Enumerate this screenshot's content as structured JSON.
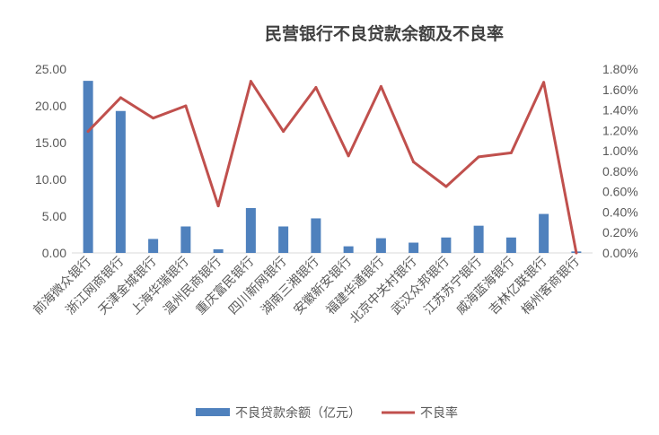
{
  "chart_data": {
    "type": "bar",
    "title": "民营银行不良贷款余额及不良率",
    "categories": [
      "前海微众银行",
      "浙江网商银行",
      "天津金城银行",
      "上海华瑞银行",
      "温州民商银行",
      "重庆富民银行",
      "四川新网银行",
      "湖南三湘银行",
      "安徽新安银行",
      "福建华通银行",
      "北京中关村银行",
      "武汉众邦银行",
      "江苏苏宁银行",
      "威海蓝海银行",
      "吉林亿联银行",
      "梅州客商银行"
    ],
    "series": [
      {
        "name": "不良贷款余额（亿元）",
        "type": "bar",
        "axis": "left",
        "color": "#4F81BD",
        "values": [
          23.4,
          19.3,
          1.9,
          3.6,
          0.5,
          6.1,
          3.6,
          4.7,
          0.9,
          2.0,
          1.4,
          2.1,
          3.7,
          2.1,
          5.3,
          0.2
        ]
      },
      {
        "name": "不良率",
        "type": "line",
        "axis": "right",
        "color": "#C0504D",
        "values": [
          1.19,
          1.52,
          1.32,
          1.44,
          0.46,
          1.68,
          1.19,
          1.62,
          0.95,
          1.63,
          0.89,
          0.65,
          0.94,
          0.98,
          1.67,
          0.0
        ]
      }
    ],
    "y_left": {
      "min": 0,
      "max": 25,
      "ticks": [
        "0.00",
        "5.00",
        "10.00",
        "15.00",
        "20.00",
        "25.00"
      ]
    },
    "y_right": {
      "min": 0,
      "max": 1.8,
      "ticks": [
        "0.00%",
        "0.20%",
        "0.40%",
        "0.60%",
        "0.80%",
        "1.00%",
        "1.20%",
        "1.40%",
        "1.60%",
        "1.80%"
      ]
    },
    "grid": false,
    "legend_position": "bottom"
  }
}
